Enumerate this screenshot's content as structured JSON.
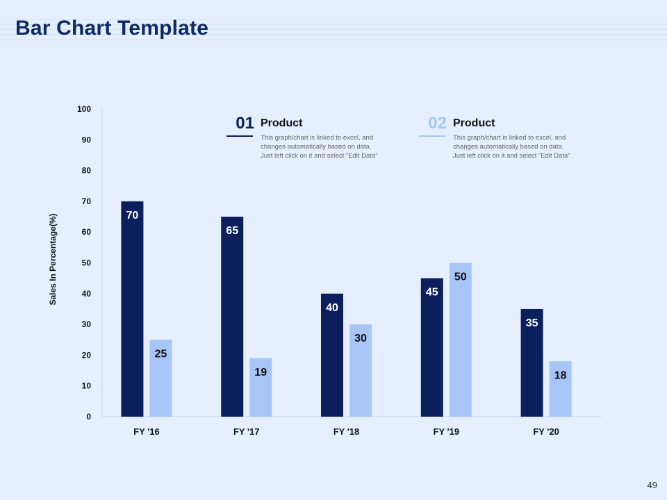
{
  "slide": {
    "title": "Bar Chart Template",
    "page_number": "49"
  },
  "colors": {
    "background": "#e6efff",
    "title": "#0d2a63",
    "product_01": "#0b1f5c",
    "product_02": "#a7c5f7"
  },
  "legend": [
    {
      "number": "01",
      "title": "Product",
      "description": [
        "This graph/chart is linked to excel, and",
        "changes automatically based on data.",
        "Just left click on it and select “Edit Data”"
      ]
    },
    {
      "number": "02",
      "title": "Product",
      "description": [
        "This graph/chart is linked to excel, and",
        "changes automatically based on data.",
        "Just left click on it and select “Edit Data”"
      ]
    }
  ],
  "chart_data": {
    "type": "bar",
    "title": "",
    "xlabel": "",
    "ylabel": "Sales In Percentage(%)",
    "ylim": [
      0,
      100
    ],
    "yticks": [
      0,
      10,
      20,
      30,
      40,
      50,
      60,
      70,
      80,
      90,
      100
    ],
    "categories": [
      "FY '16",
      "FY '17",
      "FY '18",
      "FY '19",
      "FY '20"
    ],
    "series": [
      {
        "name": "Product 01",
        "color": "#0b1f5c",
        "label_color": "#ffffff",
        "values": [
          70,
          65,
          40,
          45,
          35
        ]
      },
      {
        "name": "Product 02",
        "color": "#a7c5f7",
        "label_color": "#111111",
        "values": [
          25,
          19,
          30,
          50,
          18
        ]
      }
    ],
    "grid": false
  }
}
